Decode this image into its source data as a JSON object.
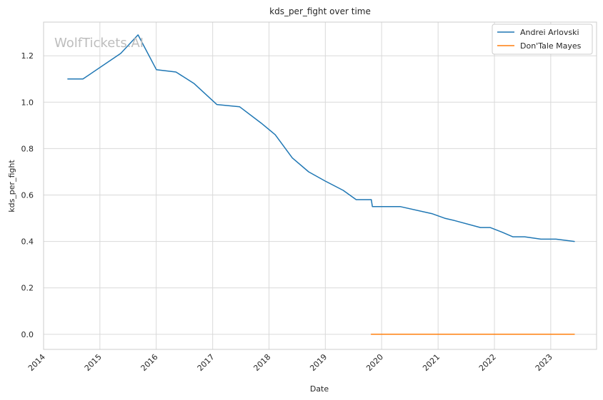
{
  "chart_data": {
    "type": "line",
    "title": "kds_per_fight over time",
    "xlabel": "Date",
    "ylabel": "kds_per_fight",
    "watermark": "WolfTickets.AI",
    "xlim": [
      "2014-01-01",
      "2023-10-25"
    ],
    "ylim": [
      -0.065,
      1.345
    ],
    "x_ticks": [
      "2014",
      "2015",
      "2016",
      "2017",
      "2018",
      "2019",
      "2020",
      "2021",
      "2022",
      "2023"
    ],
    "y_ticks": [
      "0.0",
      "0.2",
      "0.4",
      "0.6",
      "0.8",
      "1.0",
      "1.2"
    ],
    "grid": true,
    "legend_position": "top-right",
    "colors": {
      "series_1": "#1f77b4",
      "series_2": "#ff7f0e",
      "grid": "#d9d9d9",
      "axes": "#cccccc"
    },
    "series": [
      {
        "name": "Andrei Arlovski",
        "color": "#1f77b4",
        "points": [
          {
            "x": "2014-06-07",
            "y": 1.1
          },
          {
            "x": "2014-09-13",
            "y": 1.1
          },
          {
            "x": "2015-05-16",
            "y": 1.21
          },
          {
            "x": "2015-09-05",
            "y": 1.29
          },
          {
            "x": "2016-01-02",
            "y": 1.14
          },
          {
            "x": "2016-05-08",
            "y": 1.13
          },
          {
            "x": "2016-09-03",
            "y": 1.08
          },
          {
            "x": "2017-01-28",
            "y": 0.99
          },
          {
            "x": "2017-06-25",
            "y": 0.98
          },
          {
            "x": "2017-11-11",
            "y": 0.91
          },
          {
            "x": "2018-02-10",
            "y": 0.86
          },
          {
            "x": "2018-06-01",
            "y": 0.76
          },
          {
            "x": "2018-09-15",
            "y": 0.7
          },
          {
            "x": "2019-01-01",
            "y": 0.66
          },
          {
            "x": "2019-04-27",
            "y": 0.62
          },
          {
            "x": "2019-07-20",
            "y": 0.58
          },
          {
            "x": "2019-10-26",
            "y": 0.58
          },
          {
            "x": "2019-11-02",
            "y": 0.55
          },
          {
            "x": "2020-05-02",
            "y": 0.55
          },
          {
            "x": "2020-11-21",
            "y": 0.52
          },
          {
            "x": "2021-02-13",
            "y": 0.5
          },
          {
            "x": "2021-04-17",
            "y": 0.49
          },
          {
            "x": "2021-10-02",
            "y": 0.46
          },
          {
            "x": "2021-12-04",
            "y": 0.46
          },
          {
            "x": "2022-02-19",
            "y": 0.44
          },
          {
            "x": "2022-04-30",
            "y": 0.42
          },
          {
            "x": "2022-07-16",
            "y": 0.42
          },
          {
            "x": "2022-10-29",
            "y": 0.41
          },
          {
            "x": "2023-02-04",
            "y": 0.41
          },
          {
            "x": "2023-06-03",
            "y": 0.4
          }
        ]
      },
      {
        "name": "Don'Tale Mayes",
        "color": "#ff7f0e",
        "points": [
          {
            "x": "2019-10-26",
            "y": 0.0
          },
          {
            "x": "2023-06-03",
            "y": 0.0
          }
        ]
      }
    ]
  }
}
